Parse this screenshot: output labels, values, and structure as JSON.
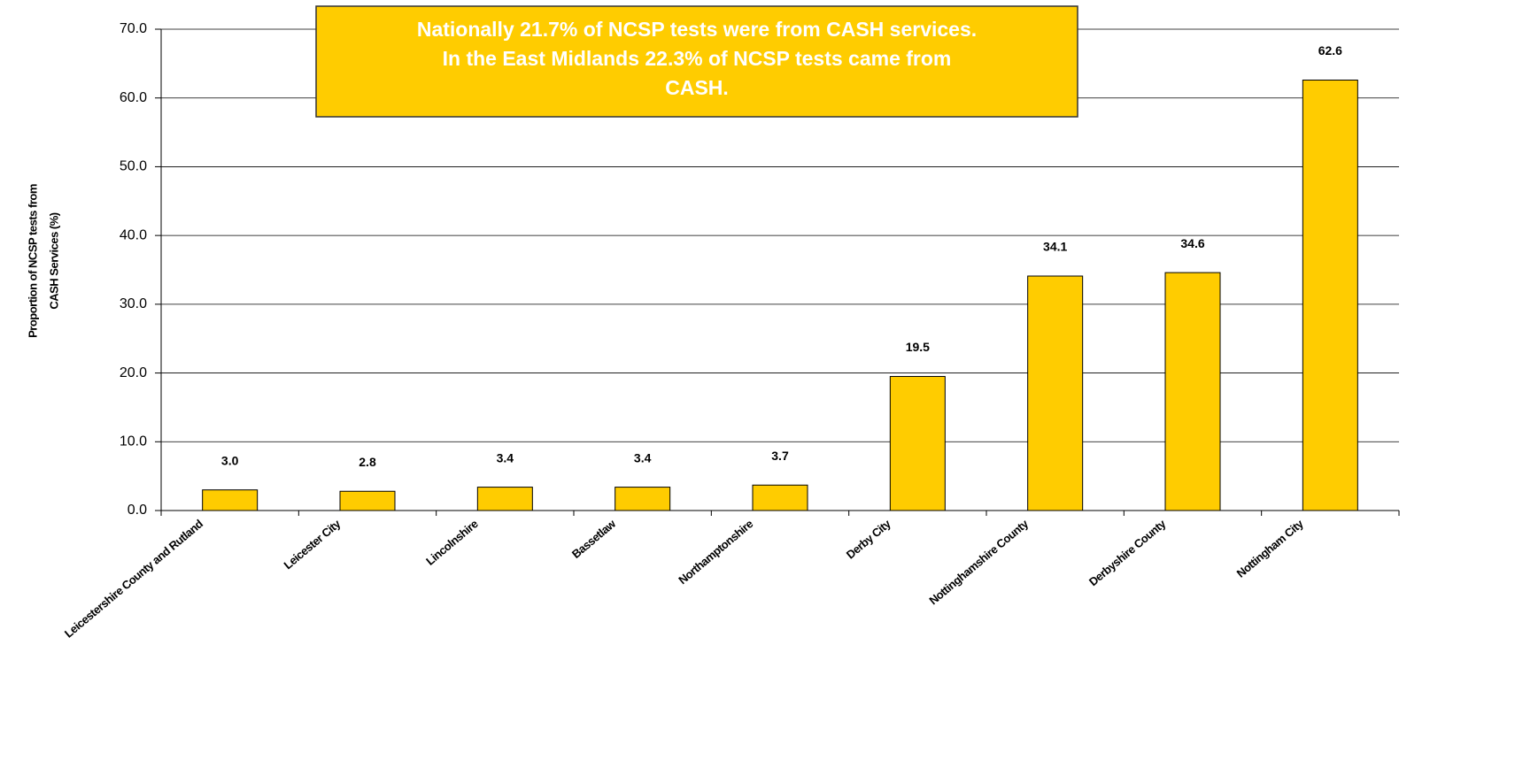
{
  "chart_data": {
    "type": "bar",
    "annotation": [
      "Nationally 21.7% of NCSP tests were from CASH services.",
      "In the East Midlands 22.3% of NCSP tests came from",
      "CASH."
    ],
    "ylabel": [
      "Proportion of NCSP tests from",
      "CASH Services (%)"
    ],
    "categories": [
      "Leicestershire County and Rutland",
      "Leicester City",
      "Lincolnshire",
      "Bassetlaw",
      "Northamptonshire",
      "Derby City",
      "Nottinghamshire County",
      "Derbyshire County",
      "Nottingham City"
    ],
    "values": [
      3.0,
      2.8,
      3.4,
      3.4,
      3.7,
      19.5,
      34.1,
      34.6,
      62.6
    ],
    "value_labels": [
      "3.0",
      "2.8",
      "3.4",
      "3.4",
      "3.7",
      "19.5",
      "34.1",
      "34.6",
      "62.6"
    ],
    "color": "#ffcc00",
    "ylim": [
      0,
      70
    ],
    "yticks": [
      {
        "value": 0,
        "label": "0.0"
      },
      {
        "value": 10,
        "label": "10.0"
      },
      {
        "value": 20,
        "label": "20.0"
      },
      {
        "value": 30,
        "label": "30.0"
      },
      {
        "value": 40,
        "label": "40.0"
      },
      {
        "value": 50,
        "label": "50.0"
      },
      {
        "value": 60,
        "label": "60.0"
      },
      {
        "value": 70,
        "label": "70.0"
      }
    ],
    "grid": true
  }
}
